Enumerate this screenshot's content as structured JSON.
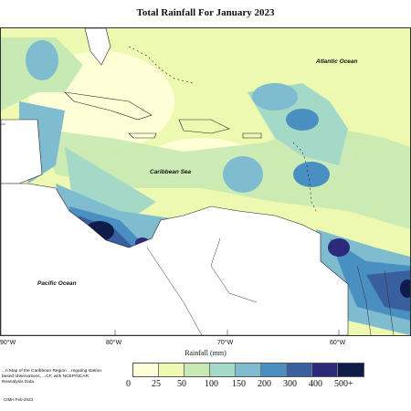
{
  "title": "Total Rainfall For January 2023",
  "labels": {
    "atlantic": "Atlantic Ocean",
    "caribbean": "Caribbean Sea",
    "pacific": "Pacific Ocean"
  },
  "longitude_ticks": [
    "90°W",
    "80°W",
    "70°W",
    "60°W"
  ],
  "axis_title": "Rainfall (mm)",
  "caption": "...n Map of the Caribbean Region ...regating station based observations, ...CF, with NCEP/NCAR Reanalysis Data.",
  "credit": "CIMH Feb-2023",
  "legend": {
    "labels": [
      "0",
      "25",
      "50",
      "100",
      "150",
      "200",
      "300",
      "400",
      "500+"
    ],
    "colors": [
      "#ffffd9",
      "#edf8b1",
      "#c7e9b4",
      "#a3d9c6",
      "#7fbccf",
      "#4a8fc1",
      "#395f9f",
      "#2d2a7a",
      "#0f1c4a"
    ]
  },
  "colors": {
    "land": "#ffffff",
    "coast": "#222222",
    "border": "#333333"
  }
}
